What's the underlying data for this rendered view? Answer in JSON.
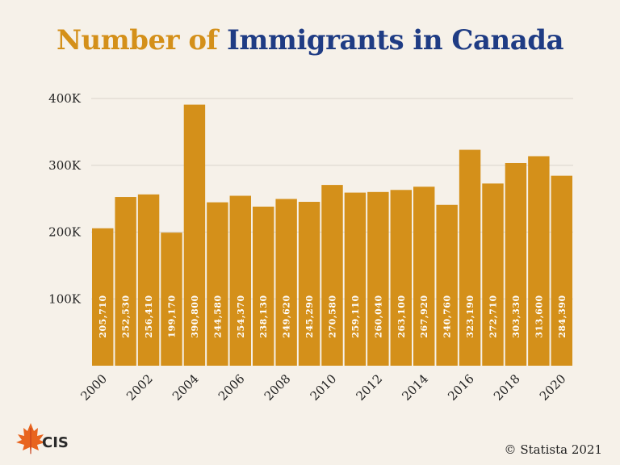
{
  "title": {
    "part1": "Number of",
    "part2": "Immigrants in Canada"
  },
  "credit": "© Statista 2021",
  "logo": {
    "text": "CIS",
    "colors": {
      "leaf": "#e8641e",
      "leaf_dark": "#c8401a",
      "text": "#2a2a2a"
    }
  },
  "colors": {
    "bar": "#d4901a",
    "title_accent": "#d4901a",
    "title_main": "#1f3c84",
    "grid": "#d9d4cc",
    "background": "#f6f1e9"
  },
  "chart_data": {
    "type": "bar",
    "title": "Number of Immigrants in Canada",
    "categories": [
      "2000",
      "2001",
      "2002",
      "2003",
      "2004",
      "2005",
      "2006",
      "2007",
      "2008",
      "2009",
      "2010",
      "2011",
      "2012",
      "2013",
      "2014",
      "2015",
      "2016",
      "2017",
      "2018",
      "2019",
      "2020"
    ],
    "values": [
      205710,
      252530,
      256410,
      199170,
      390800,
      244580,
      254370,
      238130,
      249620,
      245290,
      270580,
      259110,
      260040,
      263100,
      267920,
      240760,
      323190,
      272710,
      303330,
      313600,
      284390
    ],
    "value_labels": [
      "205,710",
      "252,530",
      "256,410",
      "199,170",
      "390,800",
      "244,580",
      "254,370",
      "238,130",
      "249,620",
      "245,290",
      "270,580",
      "259,110",
      "260,040",
      "263,100",
      "267,920",
      "240,760",
      "323,190",
      "272,710",
      "303,330",
      "313,600",
      "284,390"
    ],
    "x_tick_labels": [
      "2000",
      "2002",
      "2004",
      "2006",
      "2008",
      "2010",
      "2012",
      "2014",
      "2016",
      "2018",
      "2020"
    ],
    "y_ticks": [
      100000,
      200000,
      300000,
      400000
    ],
    "y_tick_labels": [
      "100K",
      "200K",
      "300K",
      "400K"
    ],
    "ylim": [
      0,
      400000
    ],
    "xlabel": "",
    "ylabel": "",
    "grid": true,
    "legend": "none"
  }
}
